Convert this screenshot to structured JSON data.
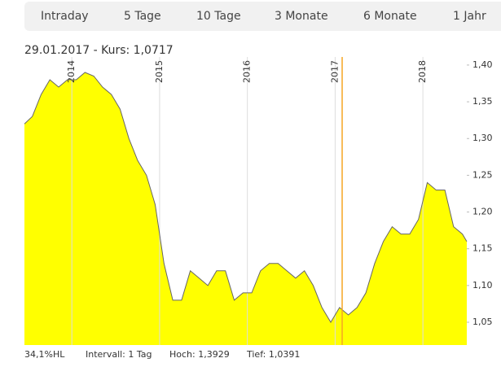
{
  "tabs": [
    "Intraday",
    "5 Tage",
    "10 Tage",
    "3 Monate",
    "6 Monate",
    "1 Jahr"
  ],
  "header": "29.01.2017  -  Kurs: 1,0717",
  "footer": [
    "34,1%HL",
    "Intervall: 1 Tag",
    "Hoch: 1,3929",
    "Tief: 1,0391"
  ],
  "chart_data": {
    "type": "area",
    "x": [
      2013.46,
      2013.55,
      2013.65,
      2013.75,
      2013.85,
      2013.95,
      2014.05,
      2014.15,
      2014.25,
      2014.35,
      2014.45,
      2014.55,
      2014.65,
      2014.75,
      2014.85,
      2014.95,
      2015.05,
      2015.15,
      2015.25,
      2015.35,
      2015.45,
      2015.55,
      2015.65,
      2015.75,
      2015.85,
      2015.95,
      2016.05,
      2016.15,
      2016.25,
      2016.35,
      2016.45,
      2016.55,
      2016.65,
      2016.75,
      2016.85,
      2016.95,
      2017.05,
      2017.15,
      2017.25,
      2017.35,
      2017.45,
      2017.55,
      2017.65,
      2017.75,
      2017.85,
      2017.95,
      2018.05,
      2018.15,
      2018.25,
      2018.35,
      2018.45,
      2018.5
    ],
    "values": [
      1.32,
      1.33,
      1.36,
      1.38,
      1.37,
      1.38,
      1.38,
      1.39,
      1.385,
      1.37,
      1.36,
      1.34,
      1.3,
      1.27,
      1.25,
      1.21,
      1.13,
      1.08,
      1.08,
      1.12,
      1.11,
      1.1,
      1.12,
      1.12,
      1.08,
      1.09,
      1.09,
      1.12,
      1.13,
      1.13,
      1.12,
      1.11,
      1.12,
      1.1,
      1.07,
      1.05,
      1.07,
      1.06,
      1.07,
      1.09,
      1.13,
      1.16,
      1.18,
      1.17,
      1.17,
      1.19,
      1.24,
      1.23,
      1.23,
      1.18,
      1.17,
      1.16
    ],
    "color": "#ffff00",
    "line_color": "#666666",
    "marker_color": "#f5a623",
    "marker_x": 2017.08,
    "xlim": [
      2013.46,
      2018.5
    ],
    "xticks": [
      2014,
      2015,
      2016,
      2017,
      2018
    ],
    "ylim": [
      1.019,
      1.411
    ],
    "yticks": [
      {
        "value": 1.05,
        "label": "1,05"
      },
      {
        "value": 1.1,
        "label": "1,10"
      },
      {
        "value": 1.15,
        "label": "1,15"
      },
      {
        "value": 1.2,
        "label": "1,20"
      },
      {
        "value": 1.25,
        "label": "1,25"
      },
      {
        "value": 1.3,
        "label": "1,30"
      },
      {
        "value": 1.35,
        "label": "1,35"
      },
      {
        "value": 1.4,
        "label": "1,40"
      }
    ],
    "grid": "x"
  }
}
